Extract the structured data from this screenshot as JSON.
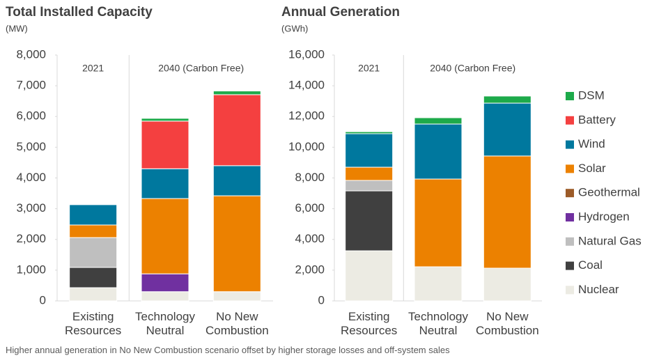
{
  "chart_data": [
    {
      "type": "stacked_bar",
      "title": "Total Installed Capacity",
      "subtitle": "(MW)",
      "categories": [
        "Existing Resources",
        "Technology Neutral",
        "No New Combustion"
      ],
      "period_labels": [
        "2021",
        "2040 (Carbon Free)"
      ],
      "ylim": [
        0,
        8000
      ],
      "yticks": [
        0,
        {
          "value": 1000,
          "label": "1,000"
        },
        {
          "value": 2000,
          "label": "2,000"
        },
        {
          "value": 3000,
          "label": "3,000"
        },
        {
          "value": 4000,
          "label": "4,000"
        },
        {
          "value": 5000,
          "label": "5,000"
        },
        {
          "value": 6000,
          "label": "6,000"
        },
        {
          "value": 7000,
          "label": "7,000"
        },
        {
          "value": 8000,
          "label": "8,000"
        }
      ],
      "series": [
        {
          "values": [
            430,
            300,
            300
          ]
        },
        {
          "values": [
            660,
            0,
            0
          ]
        },
        {
          "values": [
            970,
            0,
            0
          ]
        },
        {
          "values": [
            0,
            580,
            0
          ]
        },
        {
          "values": [
            0,
            0,
            0
          ]
        },
        {
          "values": [
            410,
            2450,
            3120
          ]
        },
        {
          "values": [
            660,
            970,
            980
          ]
        },
        {
          "values": [
            0,
            1550,
            2310
          ]
        },
        {
          "values": [
            0,
            90,
            120
          ]
        }
      ]
    },
    {
      "type": "stacked_bar",
      "title": "Annual Generation",
      "subtitle": "(GWh)",
      "categories": [
        "Existing Resources",
        "Technology Neutral",
        "No New Combustion"
      ],
      "period_labels": [
        "2021",
        "2040 (Carbon Free)"
      ],
      "ylim": [
        0,
        16000
      ],
      "yticks": [
        0,
        {
          "value": 2000,
          "label": "2,000"
        },
        {
          "value": 4000,
          "label": "4,000"
        },
        {
          "value": 6000,
          "label": "6,000"
        },
        {
          "value": 8000,
          "label": "8,000"
        },
        {
          "value": 10000,
          "label": "10,000"
        },
        {
          "value": 12000,
          "label": "12,000"
        },
        {
          "value": 14000,
          "label": "14,000"
        },
        {
          "value": 16000,
          "label": "16,000"
        }
      ],
      "series": [
        {
          "values": [
            3260,
            2220,
            2130
          ]
        },
        {
          "values": [
            3900,
            0,
            0
          ]
        },
        {
          "values": [
            680,
            0,
            0
          ]
        },
        {
          "values": [
            0,
            0,
            0
          ]
        },
        {
          "values": [
            0,
            0,
            0
          ]
        },
        {
          "values": [
            860,
            5710,
            7300
          ]
        },
        {
          "values": [
            2180,
            3580,
            3440
          ]
        },
        {
          "values": [
            0,
            0,
            0
          ]
        },
        {
          "values": [
            130,
            410,
            460
          ]
        }
      ]
    }
  ],
  "legend": {
    "position": "right",
    "items": [
      {
        "name": "Nuclear",
        "color": "#ecebe3"
      },
      {
        "name": "Coal",
        "color": "#404040"
      },
      {
        "name": "Natural Gas",
        "color": "#bfbfbf"
      },
      {
        "name": "Hydrogen",
        "color": "#7030a0"
      },
      {
        "name": "Geothermal",
        "color": "#9c5b28"
      },
      {
        "name": "Solar",
        "color": "#ec8100"
      },
      {
        "name": "Wind",
        "color": "#00789e"
      },
      {
        "name": "Battery",
        "color": "#f44040"
      },
      {
        "name": "DSM",
        "color": "#1daa4a"
      }
    ]
  },
  "footnote": "Higher annual generation in No New Combustion scenario offset by higher storage losses and off-system sales"
}
